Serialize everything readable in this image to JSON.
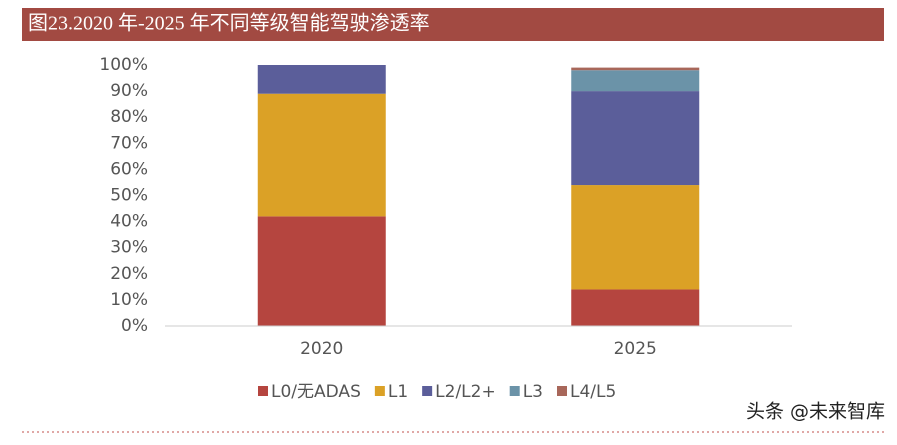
{
  "chart_data": {
    "type": "stacked_bar",
    "title": "图23.2020 年-2025 年不同等级智能驾驶渗透率",
    "categories": [
      "2020",
      "2025"
    ],
    "series": [
      {
        "name": "L0/无ADAS",
        "color": "#b5453f",
        "values": [
          42,
          14
        ]
      },
      {
        "name": "L1",
        "color": "#dba126",
        "values": [
          47,
          40
        ]
      },
      {
        "name": "L2/L2+",
        "color": "#5b5e9a",
        "values": [
          11,
          36
        ]
      },
      {
        "name": "L3",
        "color": "#6b93a8",
        "values": [
          0,
          8
        ]
      },
      {
        "name": "L4/L5",
        "color": "#a8675a",
        "values": [
          0,
          1
        ]
      }
    ],
    "ylim": [
      0,
      100
    ],
    "yticks": [
      {
        "value": 0,
        "label": "0%"
      },
      {
        "value": 10,
        "label": "10%"
      },
      {
        "value": 20,
        "label": "20%"
      },
      {
        "value": 30,
        "label": "30%"
      },
      {
        "value": 40,
        "label": "40%"
      },
      {
        "value": 50,
        "label": "50%"
      },
      {
        "value": 60,
        "label": "60%"
      },
      {
        "value": 70,
        "label": "70%"
      },
      {
        "value": 80,
        "label": "80%"
      },
      {
        "value": 90,
        "label": "90%"
      },
      {
        "value": 100,
        "label": "100%"
      }
    ],
    "grid": false,
    "legend": "bottom",
    "watermark": "头条 @未来智库"
  }
}
